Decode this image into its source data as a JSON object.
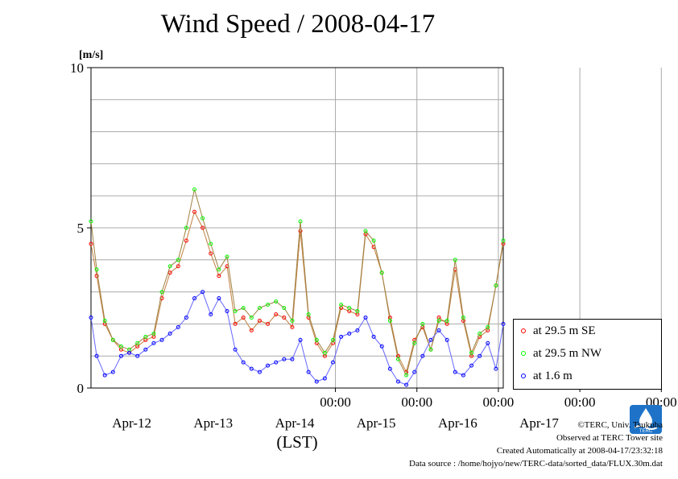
{
  "title": "Wind Speed / 2008-04-17",
  "chart_data": {
    "type": "line",
    "title": "Wind Speed / 2008-04-17",
    "ylabel": "[m/s]",
    "xlabel": "(LST)",
    "ylim": [
      0,
      10
    ],
    "yticks": [
      "0",
      "5",
      "10"
    ],
    "x_time_labels": [
      "00:00",
      "00:00",
      "00:00",
      "00:00",
      "00:00"
    ],
    "x_date_labels": [
      "Apr-12",
      "Apr-13",
      "Apr-14",
      "Apr-15",
      "Apr-16",
      "Apr-17"
    ],
    "x_unit": "day",
    "x_range_days": [
      -3.0,
      2.06
    ],
    "x_midnights_days": [
      0,
      1,
      2,
      3,
      4
    ],
    "grid": true,
    "legend_position": "right",
    "series": [
      {
        "name": "at 29.5 m SE",
        "color": "#ff0000",
        "x": [
          -3.0,
          -2.93,
          -2.83,
          -2.73,
          -2.63,
          -2.53,
          -2.43,
          -2.33,
          -2.23,
          -2.13,
          -2.03,
          -1.93,
          -1.83,
          -1.73,
          -1.63,
          -1.53,
          -1.43,
          -1.33,
          -1.23,
          -1.13,
          -1.03,
          -0.93,
          -0.83,
          -0.73,
          -0.63,
          -0.53,
          -0.43,
          -0.33,
          -0.23,
          -0.13,
          -0.03,
          0.07,
          0.17,
          0.27,
          0.37,
          0.47,
          0.57,
          0.67,
          0.77,
          0.87,
          0.97,
          1.07,
          1.17,
          1.27,
          1.37,
          1.47,
          1.57,
          1.67,
          1.77,
          1.87,
          1.97,
          2.06
        ],
        "y": [
          4.5,
          3.5,
          2.0,
          1.5,
          1.2,
          1.1,
          1.3,
          1.5,
          1.6,
          2.8,
          3.6,
          3.8,
          4.6,
          5.5,
          5.0,
          4.2,
          3.5,
          3.8,
          2.0,
          2.2,
          1.8,
          2.1,
          2.0,
          2.3,
          2.2,
          1.9,
          4.9,
          2.2,
          1.4,
          1.0,
          1.4,
          2.5,
          2.4,
          2.3,
          4.8,
          4.4,
          3.6,
          2.2,
          1.0,
          0.5,
          1.5,
          1.9,
          1.2,
          2.2,
          2.0,
          3.7,
          2.1,
          1.0,
          1.6,
          1.8,
          3.2,
          4.5
        ]
      },
      {
        "name": "at 29.5 m NW",
        "color": "#00ff00",
        "x": [
          -3.0,
          -2.93,
          -2.83,
          -2.73,
          -2.63,
          -2.53,
          -2.43,
          -2.33,
          -2.23,
          -2.13,
          -2.03,
          -1.93,
          -1.83,
          -1.73,
          -1.63,
          -1.53,
          -1.43,
          -1.33,
          -1.23,
          -1.13,
          -1.03,
          -0.93,
          -0.83,
          -0.73,
          -0.63,
          -0.53,
          -0.43,
          -0.33,
          -0.23,
          -0.13,
          -0.03,
          0.07,
          0.17,
          0.27,
          0.37,
          0.47,
          0.57,
          0.67,
          0.77,
          0.87,
          0.97,
          1.07,
          1.17,
          1.27,
          1.37,
          1.47,
          1.57,
          1.67,
          1.77,
          1.87,
          1.97,
          2.06
        ],
        "y": [
          5.2,
          3.7,
          2.1,
          1.5,
          1.3,
          1.2,
          1.4,
          1.6,
          1.7,
          3.0,
          3.8,
          4.0,
          5.0,
          6.2,
          5.3,
          4.5,
          3.7,
          4.1,
          2.4,
          2.5,
          2.2,
          2.5,
          2.6,
          2.7,
          2.5,
          2.1,
          5.2,
          2.3,
          1.5,
          1.1,
          1.5,
          2.6,
          2.5,
          2.4,
          4.9,
          4.6,
          3.6,
          2.1,
          0.9,
          0.4,
          1.4,
          2.0,
          1.2,
          2.1,
          2.1,
          4.0,
          2.2,
          1.1,
          1.7,
          1.9,
          3.2,
          4.6
        ]
      },
      {
        "name": "at 1.6 m",
        "color": "#0000ff",
        "x": [
          -3.0,
          -2.93,
          -2.83,
          -2.73,
          -2.63,
          -2.53,
          -2.43,
          -2.33,
          -2.23,
          -2.13,
          -2.03,
          -1.93,
          -1.83,
          -1.73,
          -1.63,
          -1.53,
          -1.43,
          -1.33,
          -1.23,
          -1.13,
          -1.03,
          -0.93,
          -0.83,
          -0.73,
          -0.63,
          -0.53,
          -0.43,
          -0.33,
          -0.23,
          -0.13,
          -0.03,
          0.07,
          0.17,
          0.27,
          0.37,
          0.47,
          0.57,
          0.67,
          0.77,
          0.87,
          0.97,
          1.07,
          1.17,
          1.27,
          1.37,
          1.47,
          1.57,
          1.67,
          1.77,
          1.87,
          1.97,
          2.06
        ],
        "y": [
          2.2,
          1.0,
          0.4,
          0.5,
          1.0,
          1.1,
          1.0,
          1.2,
          1.4,
          1.5,
          1.7,
          1.9,
          2.2,
          2.8,
          3.0,
          2.3,
          2.8,
          2.4,
          1.2,
          0.8,
          0.6,
          0.5,
          0.7,
          0.8,
          0.9,
          0.9,
          1.5,
          0.5,
          0.2,
          0.3,
          0.8,
          1.6,
          1.7,
          1.8,
          2.2,
          1.6,
          1.3,
          0.6,
          0.2,
          0.1,
          0.5,
          1.0,
          1.5,
          1.8,
          1.5,
          0.5,
          0.4,
          0.7,
          1.0,
          1.4,
          0.6,
          2.0
        ]
      }
    ]
  },
  "legend": [
    {
      "label": "at 29.5 m SE",
      "color": "#ff0000"
    },
    {
      "label": "at 29.5 m NW",
      "color": "#00ff00"
    },
    {
      "label": "at 1.6 m",
      "color": "#0000ff"
    }
  ],
  "credits": {
    "copyright": "©TERC, Univ. Tsukuba",
    "site": "Observed at TERC Tower site",
    "created": "Created Automatically at 2008-04-17/23:32:18",
    "source": "Data source : /home/hojyo/new/TERC-data/sorted_data/FLUX.30m.dat"
  },
  "logo": {
    "text": "TERC",
    "icon": "terc-logo-icon"
  }
}
